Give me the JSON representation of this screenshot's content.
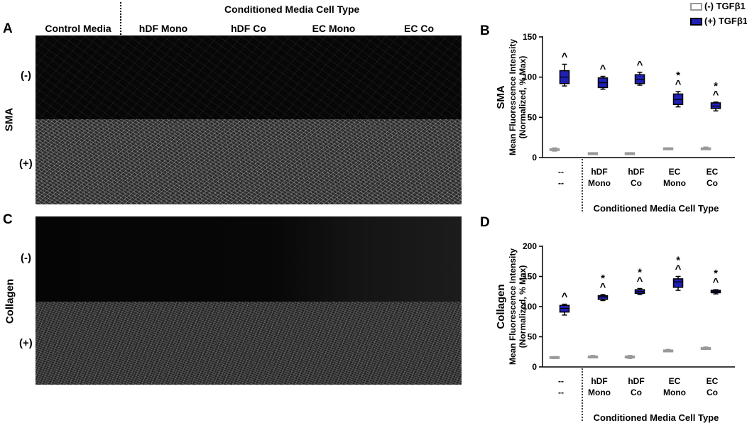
{
  "panel_letters": {
    "a": "A",
    "b": "B",
    "c": "C",
    "d": "D"
  },
  "left": {
    "header": "Conditioned Media Cell Type",
    "columns": [
      "Control Media",
      "hDF Mono",
      "hDF Co",
      "EC Mono",
      "EC Co"
    ],
    "sma_label": "SMA",
    "collagen_label": "Collagen",
    "row_minus": "(-)",
    "row_plus": "(+)"
  },
  "legend": {
    "minus": "(-) TGFβ1",
    "plus": "(+) TGFβ1",
    "colors": {
      "minus": "#999999",
      "plus": "#1f1fb4"
    }
  },
  "chart_data": [
    {
      "type": "box",
      "panel": "B",
      "ylabel_lines": [
        "SMA",
        "Mean Fluorescence Intensity",
        "(Normalized, % Max)"
      ],
      "ylim": [
        0,
        150
      ],
      "yticks": [
        0,
        50,
        100,
        150
      ],
      "categories": [
        [
          "--",
          "--"
        ],
        [
          "hDF",
          "Mono"
        ],
        [
          "hDF",
          "Co"
        ],
        [
          "EC",
          "Mono"
        ],
        [
          "EC",
          "Co"
        ]
      ],
      "xlabel": "Conditioned Media Cell Type",
      "series": [
        {
          "name": "(-) TGFβ1",
          "min": [
            8,
            4,
            4,
            10,
            10
          ],
          "q1": [
            9,
            5,
            5,
            11,
            11
          ],
          "median": [
            10,
            5,
            5,
            11,
            11
          ],
          "q3": [
            11,
            6,
            6,
            12,
            12
          ],
          "max": [
            12,
            6,
            6,
            12,
            13
          ]
        },
        {
          "name": "(+) TGFβ1",
          "min": [
            89,
            85,
            90,
            63,
            58
          ],
          "q1": [
            92,
            87,
            92,
            66,
            61
          ],
          "median": [
            100,
            93,
            97,
            72,
            64
          ],
          "q3": [
            108,
            99,
            103,
            79,
            68
          ],
          "max": [
            116,
            101,
            106,
            82,
            69
          ]
        }
      ],
      "annotations": [
        [
          "^"
        ],
        [
          "^"
        ],
        [
          "^"
        ],
        [
          "*",
          "^"
        ],
        [
          "*",
          "^"
        ]
      ]
    },
    {
      "type": "box",
      "panel": "D",
      "ylabel_lines": [
        "Collagen",
        "Mean Fluorescence Intensity",
        "(Normalized, % Max)"
      ],
      "ylim": [
        0,
        200
      ],
      "yticks": [
        0,
        50,
        100,
        150,
        200
      ],
      "categories": [
        [
          "--",
          "--"
        ],
        [
          "hDF",
          "Mono"
        ],
        [
          "hDF",
          "Co"
        ],
        [
          "EC",
          "Mono"
        ],
        [
          "EC",
          "Co"
        ]
      ],
      "xlabel": "Conditioned Media Cell Type",
      "series": [
        {
          "name": "(-) TGFβ1",
          "min": [
            14,
            17,
            14,
            25,
            29
          ],
          "q1": [
            15,
            18,
            15,
            26,
            30
          ],
          "median": [
            16,
            18,
            16,
            27,
            31
          ],
          "q3": [
            17,
            18,
            18,
            28,
            32
          ],
          "max": [
            17,
            19,
            19,
            29,
            33
          ]
        },
        {
          "name": "(+) TGFβ1",
          "min": [
            86,
            110,
            120,
            127,
            121
          ],
          "q1": [
            91,
            112,
            122,
            132,
            123
          ],
          "median": [
            97,
            116,
            125,
            141,
            125
          ],
          "q3": [
            102,
            118,
            128,
            146,
            127
          ],
          "max": [
            104,
            120,
            130,
            150,
            128
          ]
        }
      ],
      "annotations": [
        [
          "^"
        ],
        [
          "*",
          "^"
        ],
        [
          "*",
          "^"
        ],
        [
          "*",
          "^"
        ],
        [
          "*",
          "^"
        ]
      ]
    }
  ]
}
